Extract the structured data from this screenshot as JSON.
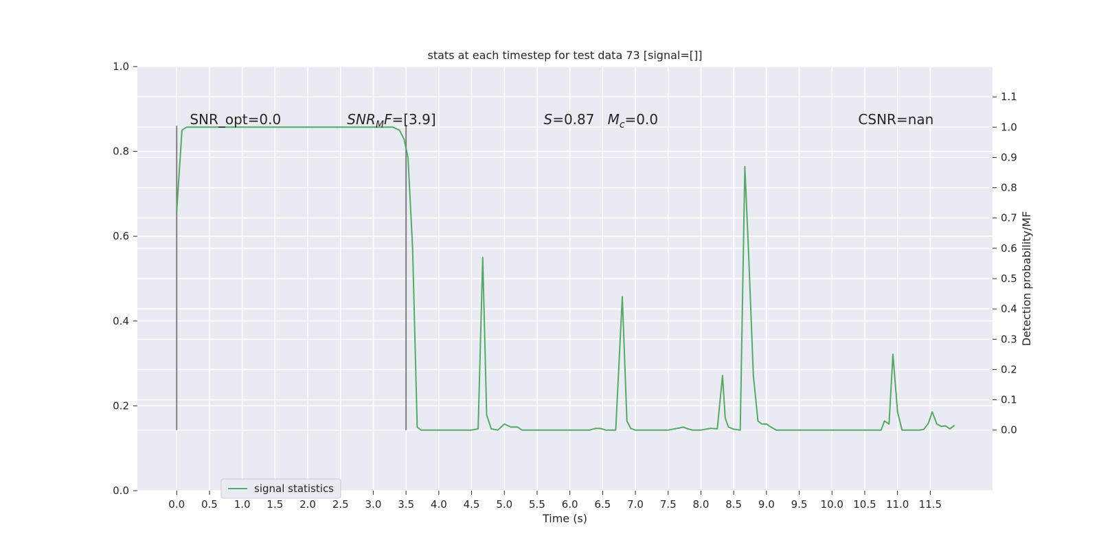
{
  "chart_data": {
    "type": "line",
    "title": "stats at each timestep for test data 73 [signal=[]]",
    "xlabel": "Time (s)",
    "ylabel_left": "",
    "ylabel_right": "Detection probability/MF",
    "x_ticks": [
      "0.0",
      "0.5",
      "1.0",
      "1.5",
      "2.0",
      "2.5",
      "3.0",
      "3.5",
      "4.0",
      "4.5",
      "5.0",
      "5.5",
      "6.0",
      "6.5",
      "7.0",
      "7.5",
      "8.0",
      "8.5",
      "9.0",
      "9.5",
      "10.0",
      "10.5",
      "11.0",
      "11.5"
    ],
    "y_left_ticks": [
      "0.0",
      "0.2",
      "0.4",
      "0.6",
      "0.8",
      "1.0"
    ],
    "y_right_ticks": [
      "0.0",
      "0.1",
      "0.2",
      "0.3",
      "0.4",
      "0.5",
      "0.6",
      "0.7",
      "0.8",
      "0.9",
      "1.0",
      "1.1"
    ],
    "xlim": [
      -0.6,
      12.45
    ],
    "ylim_left": [
      0.0,
      1.0
    ],
    "ylim_right": [
      -0.2,
      1.2
    ],
    "grid": true,
    "legend_placement": "bottom-left",
    "vertical_markers": [
      {
        "x": 0.0,
        "y_bottom": 0.0,
        "y_top": 1.0
      },
      {
        "x": 3.5,
        "y_bottom": 0.0,
        "y_top": 1.0
      }
    ],
    "annotations": [
      {
        "text": "SNR_opt=0.0",
        "x": 0.2,
        "y": 1.01
      },
      {
        "text": "SNR_MF=[3.9]",
        "x": 2.6,
        "y": 1.01
      },
      {
        "text": "S=0.87   M_c=0.0",
        "x": 5.6,
        "y": 1.01
      },
      {
        "text": "CSNR=nan",
        "x": 10.4,
        "y": 1.01
      }
    ],
    "series": [
      {
        "name": "signal statistics",
        "color": "#55a868",
        "axis": "right",
        "x": [
          0.0,
          0.08,
          0.15,
          0.25,
          0.5,
          1.0,
          1.5,
          2.0,
          2.5,
          3.0,
          3.3,
          3.4,
          3.47,
          3.53,
          3.6,
          3.67,
          3.73,
          3.8,
          4.0,
          4.5,
          4.6,
          4.67,
          4.73,
          4.8,
          4.9,
          5.0,
          5.1,
          5.2,
          5.27,
          5.35,
          5.5,
          6.0,
          6.3,
          6.4,
          6.47,
          6.55,
          6.7,
          6.8,
          6.87,
          6.93,
          7.0,
          7.5,
          7.67,
          7.73,
          7.8,
          7.87,
          8.0,
          8.15,
          8.25,
          8.33,
          8.37,
          8.42,
          8.5,
          8.6,
          8.67,
          8.73,
          8.8,
          8.87,
          8.93,
          9.0,
          9.07,
          9.15,
          9.27,
          9.33,
          9.5,
          9.6,
          10.0,
          10.5,
          10.75,
          10.8,
          10.87,
          10.93,
          11.0,
          11.07,
          11.2,
          11.33,
          11.4,
          11.47,
          11.53,
          11.6,
          11.67,
          11.73,
          11.8,
          11.87
        ],
        "y": [
          0.72,
          0.99,
          1.0,
          1.0,
          1.0,
          1.0,
          1.0,
          1.0,
          1.0,
          1.0,
          1.0,
          0.99,
          0.96,
          0.9,
          0.6,
          0.01,
          0.0,
          0.0,
          0.0,
          0.0,
          0.004,
          0.57,
          0.05,
          0.004,
          0.0,
          0.02,
          0.01,
          0.01,
          0.0,
          0.0,
          0.0,
          0.0,
          0.0,
          0.006,
          0.005,
          0.0,
          0.0,
          0.44,
          0.03,
          0.005,
          0.0,
          0.0,
          0.007,
          0.01,
          0.004,
          0.0,
          0.0,
          0.006,
          0.004,
          0.18,
          0.04,
          0.01,
          0.003,
          0.0,
          0.87,
          0.57,
          0.18,
          0.03,
          0.02,
          0.02,
          0.01,
          0.0,
          0.0,
          0.0,
          0.0,
          0.0,
          0.0,
          0.0,
          0.0,
          0.03,
          0.02,
          0.25,
          0.06,
          0.0,
          0.0,
          0.0,
          0.002,
          0.022,
          0.06,
          0.02,
          0.012,
          0.014,
          0.004,
          0.016
        ]
      }
    ]
  }
}
